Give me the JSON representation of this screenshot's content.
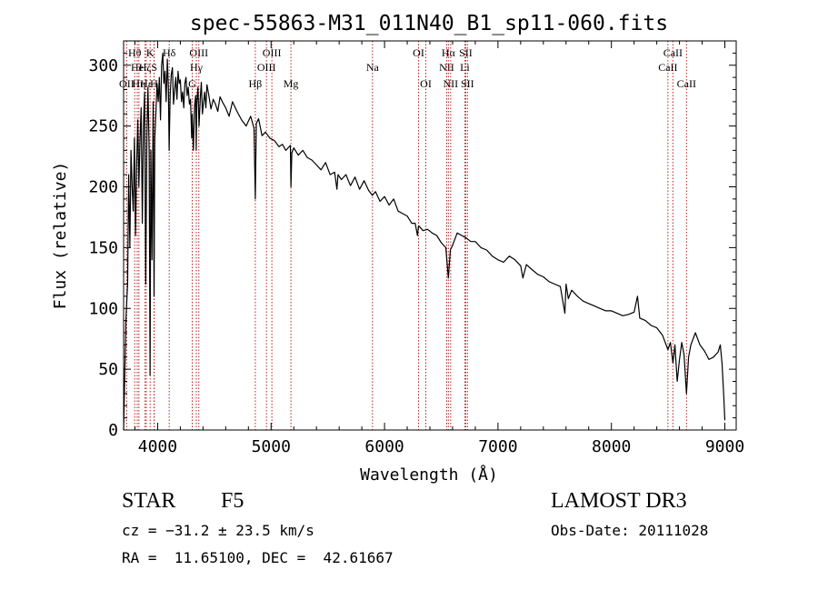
{
  "chart_data": {
    "type": "line",
    "title": "spec-55863-M31_011N40_B1_sp11-060.fits",
    "xlabel": "Wavelength (Å)",
    "ylabel": "Flux (relative)",
    "xlim": [
      3700,
      9100
    ],
    "ylim": [
      0,
      320
    ],
    "xticks": [
      4000,
      5000,
      6000,
      7000,
      8000,
      9000
    ],
    "yticks": [
      0,
      50,
      100,
      150,
      200,
      250,
      300
    ],
    "x_tick_labels": [
      "4000",
      "5000",
      "6000",
      "7000",
      "8000",
      "9000"
    ],
    "y_tick_labels": [
      "0",
      "50",
      "100",
      "150",
      "200",
      "250",
      "300"
    ],
    "spectrum": {
      "x": [
        3700,
        3720,
        3735,
        3745,
        3755,
        3765,
        3775,
        3785,
        3795,
        3805,
        3815,
        3825,
        3835,
        3845,
        3855,
        3865,
        3875,
        3885,
        3895,
        3905,
        3915,
        3925,
        3933,
        3940,
        3950,
        3960,
        3968,
        3975,
        3985,
        3995,
        4005,
        4015,
        4025,
        4035,
        4045,
        4055,
        4065,
        4075,
        4085,
        4095,
        4101,
        4110,
        4120,
        4130,
        4140,
        4150,
        4160,
        4170,
        4180,
        4190,
        4200,
        4210,
        4220,
        4230,
        4240,
        4250,
        4260,
        4270,
        4280,
        4290,
        4300,
        4305,
        4315,
        4325,
        4335,
        4340,
        4345,
        4355,
        4365,
        4375,
        4385,
        4395,
        4405,
        4415,
        4425,
        4435,
        4450,
        4470,
        4490,
        4510,
        4530,
        4550,
        4570,
        4600,
        4630,
        4660,
        4700,
        4740,
        4780,
        4820,
        4850,
        4861,
        4870,
        4890,
        4920,
        4950,
        4990,
        5030,
        5070,
        5100,
        5130,
        5170,
        5175,
        5183,
        5200,
        5240,
        5280,
        5320,
        5360,
        5400,
        5440,
        5480,
        5520,
        5560,
        5580,
        5590,
        5620,
        5660,
        5700,
        5740,
        5780,
        5820,
        5860,
        5893,
        5920,
        5960,
        6000,
        6040,
        6080,
        6120,
        6160,
        6200,
        6240,
        6270,
        6290,
        6300,
        6340,
        6380,
        6420,
        6460,
        6500,
        6540,
        6563,
        6580,
        6600,
        6640,
        6680,
        6720,
        6760,
        6800,
        6850,
        6900,
        6950,
        7000,
        7050,
        7100,
        7150,
        7200,
        7220,
        7250,
        7300,
        7350,
        7400,
        7450,
        7500,
        7550,
        7590,
        7600,
        7620,
        7650,
        7700,
        7750,
        7800,
        7850,
        7900,
        7950,
        8000,
        8050,
        8100,
        8150,
        8200,
        8230,
        8250,
        8300,
        8350,
        8400,
        8450,
        8498,
        8520,
        8542,
        8560,
        8580,
        8600,
        8620,
        8640,
        8662,
        8680,
        8700,
        8740,
        8780,
        8820,
        8860,
        8900,
        8940,
        8960,
        8975,
        8990,
        9000
      ],
      "y": [
        0,
        90,
        120,
        210,
        150,
        230,
        200,
        180,
        240,
        160,
        220,
        255,
        200,
        240,
        265,
        170,
        250,
        278,
        120,
        240,
        282,
        230,
        45,
        230,
        140,
        270,
        110,
        240,
        262,
        285,
        270,
        290,
        255,
        300,
        310,
        285,
        295,
        270,
        305,
        280,
        230,
        275,
        292,
        298,
        268,
        280,
        290,
        272,
        295,
        285,
        288,
        270,
        278,
        265,
        285,
        290,
        275,
        282,
        268,
        272,
        240,
        260,
        230,
        266,
        275,
        230,
        268,
        282,
        250,
        272,
        286,
        260,
        270,
        278,
        265,
        284,
        276,
        264,
        272,
        268,
        262,
        274,
        270,
        265,
        258,
        270,
        262,
        255,
        250,
        258,
        248,
        190,
        252,
        256,
        242,
        245,
        240,
        238,
        233,
        235,
        230,
        234,
        200,
        228,
        232,
        226,
        230,
        224,
        222,
        218,
        214,
        220,
        210,
        212,
        198,
        210,
        206,
        210,
        201,
        208,
        198,
        205,
        197,
        193,
        196,
        188,
        192,
        185,
        190,
        180,
        178,
        176,
        170,
        170,
        160,
        168,
        164,
        165,
        162,
        160,
        154,
        150,
        125,
        148,
        152,
        162,
        160,
        158,
        155,
        155,
        150,
        148,
        143,
        140,
        138,
        143,
        140,
        135,
        125,
        136,
        132,
        128,
        126,
        122,
        120,
        118,
        96,
        120,
        108,
        115,
        110,
        106,
        104,
        102,
        100,
        98,
        98,
        96,
        94,
        95,
        97,
        110,
        92,
        90,
        86,
        84,
        78,
        66,
        72,
        55,
        70,
        40,
        58,
        72,
        62,
        30,
        60,
        70,
        80,
        70,
        65,
        58,
        60,
        64,
        70,
        55,
        28,
        8
      ]
    },
    "line_markers": [
      {
        "label": "Hθ",
        "x": 3798,
        "row": 1
      },
      {
        "label": "OII",
        "x": 3727,
        "row": 3
      },
      {
        "label": "He",
        "x": 3820,
        "row": 2
      },
      {
        "label": "Hη",
        "x": 3835,
        "row": 3
      },
      {
        "label": "Hζ",
        "x": 3889,
        "row": 2
      },
      {
        "label": "Hε",
        "x": 3900,
        "row": 3
      },
      {
        "label": "K",
        "x": 3934,
        "row": 1
      },
      {
        "label": "H",
        "x": 3968,
        "row": 3
      },
      {
        "label": "S",
        "x": 3970,
        "row": 2
      },
      {
        "label": "Hδ",
        "x": 4102,
        "row": 1
      },
      {
        "label": "G",
        "x": 4305,
        "row": 3
      },
      {
        "label": "Hγ",
        "x": 4341,
        "row": 2
      },
      {
        "label": "OIII",
        "x": 4363,
        "row": 1
      },
      {
        "label": "Hβ",
        "x": 4861,
        "row": 3
      },
      {
        "label": "OIII",
        "x": 4959,
        "row": 2
      },
      {
        "label": "OIII",
        "x": 5007,
        "row": 1
      },
      {
        "label": "Mg",
        "x": 5175,
        "row": 3
      },
      {
        "label": "Na",
        "x": 5894,
        "row": 2
      },
      {
        "label": "OI",
        "x": 6300,
        "row": 1
      },
      {
        "label": "OI",
        "x": 6364,
        "row": 3
      },
      {
        "label": "NII",
        "x": 6548,
        "row": 2
      },
      {
        "label": "Hα",
        "x": 6563,
        "row": 1
      },
      {
        "label": "NII",
        "x": 6583,
        "row": 3
      },
      {
        "label": "Li",
        "x": 6708,
        "row": 2
      },
      {
        "label": "SII",
        "x": 6716,
        "row": 1
      },
      {
        "label": "SII",
        "x": 6731,
        "row": 3
      },
      {
        "label": "CaII",
        "x": 8498,
        "row": 2
      },
      {
        "label": "CaII",
        "x": 8542,
        "row": 1
      },
      {
        "label": "CaII",
        "x": 8662,
        "row": 3
      }
    ],
    "marker_color": "#b22222",
    "line_color": "#000000"
  },
  "info": {
    "class_label": "STAR",
    "subclass": "F5",
    "survey": "LAMOST DR3",
    "cz": "cz = −31.2 ± 23.5 km/s",
    "obs_date": "Obs-Date: 20111028",
    "coords": "RA =  11.65100, DEC =  42.61667"
  }
}
